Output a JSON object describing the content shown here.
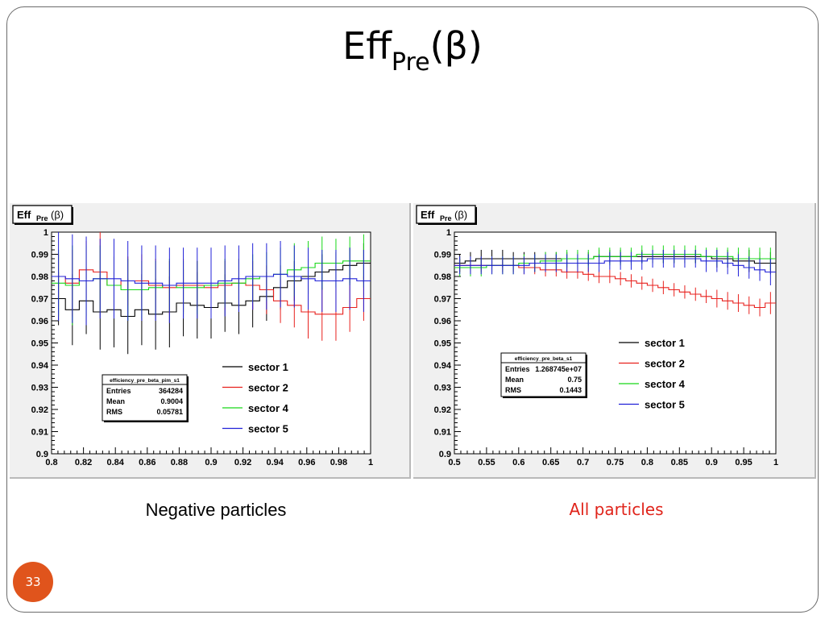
{
  "slide": {
    "title_main": "Eff",
    "title_sub": "Pre",
    "title_arg": "(β)",
    "caption_left": "Negative particles",
    "caption_right": "All particles",
    "page_number": "33"
  },
  "colors": {
    "sector_1": "#000000",
    "sector_2": "#e8201d",
    "sector_4": "#17d817",
    "sector_5": "#2020d8",
    "panel_bg": "#f0f0f0",
    "caption_right": "#e0241b",
    "badge": "#e0541c"
  },
  "chart_data": [
    {
      "type": "line",
      "title": "Eff_Pre(β)",
      "title_main": "Eff",
      "title_sub": "Pre",
      "title_arg": "(β)",
      "xlabel": "",
      "ylabel": "",
      "xlim": [
        0.8,
        1.0
      ],
      "ylim": [
        0.9,
        1.0
      ],
      "x_ticks": [
        "0.8",
        "0.82",
        "0.84",
        "0.86",
        "0.88",
        "0.9",
        "0.92",
        "0.94",
        "0.96",
        "0.98",
        "1"
      ],
      "y_ticks": [
        "0.9",
        "0.91",
        "0.92",
        "0.93",
        "0.94",
        "0.95",
        "0.96",
        "0.97",
        "0.98",
        "0.99",
        "1"
      ],
      "legend": "right",
      "stats": {
        "name": "efficiency_pre_beta_pim_s1",
        "rows": [
          [
            "Entries",
            "364284"
          ],
          [
            "Mean",
            "0.9004"
          ],
          [
            "RMS",
            "0.05781"
          ]
        ]
      },
      "series": [
        {
          "name": "sector 1",
          "values": [
            0.97,
            0.965,
            0.969,
            0.964,
            0.965,
            0.962,
            0.965,
            0.963,
            0.964,
            0.968,
            0.967,
            0.966,
            0.968,
            0.967,
            0.969,
            0.971,
            0.975,
            0.978,
            0.98,
            0.982,
            0.983,
            0.985,
            0.986
          ],
          "errors": [
            0.012,
            0.016,
            0.015,
            0.017,
            0.017,
            0.017,
            0.016,
            0.016,
            0.016,
            0.015,
            0.015,
            0.014,
            0.013,
            0.013,
            0.012,
            0.011,
            0.01,
            0.009,
            0.008,
            0.008,
            0.008,
            0.008,
            0.009
          ]
        },
        {
          "name": "sector 2",
          "values": [
            0.98,
            0.977,
            0.983,
            0.982,
            0.976,
            0.978,
            0.978,
            0.976,
            0.975,
            0.976,
            0.976,
            0.975,
            0.976,
            0.977,
            0.976,
            0.974,
            0.969,
            0.967,
            0.964,
            0.963,
            0.963,
            0.966,
            0.97
          ],
          "errors": [
            0.01,
            0.015,
            0.013,
            0.018,
            0.013,
            0.011,
            0.012,
            0.012,
            0.012,
            0.012,
            0.011,
            0.011,
            0.011,
            0.011,
            0.011,
            0.011,
            0.01,
            0.01,
            0.012,
            0.012,
            0.012,
            0.011,
            0.01
          ]
        },
        {
          "name": "sector 4",
          "values": [
            0.977,
            0.976,
            0.978,
            0.979,
            0.976,
            0.974,
            0.974,
            0.975,
            0.976,
            0.975,
            0.975,
            0.976,
            0.977,
            0.977,
            0.979,
            0.98,
            0.981,
            0.983,
            0.984,
            0.986,
            0.986,
            0.987,
            0.987
          ],
          "errors": [
            0.015,
            0.018,
            0.016,
            0.015,
            0.013,
            0.014,
            0.013,
            0.012,
            0.012,
            0.012,
            0.012,
            0.011,
            0.011,
            0.011,
            0.011,
            0.011,
            0.012,
            0.012,
            0.012,
            0.012,
            0.011,
            0.011,
            0.012
          ]
        },
        {
          "name": "sector 5",
          "values": [
            0.98,
            0.979,
            0.978,
            0.979,
            0.979,
            0.978,
            0.977,
            0.977,
            0.976,
            0.977,
            0.977,
            0.977,
            0.978,
            0.979,
            0.98,
            0.98,
            0.981,
            0.98,
            0.979,
            0.978,
            0.978,
            0.979,
            0.978
          ],
          "errors": [
            0.02,
            0.02,
            0.02,
            0.018,
            0.018,
            0.018,
            0.017,
            0.017,
            0.017,
            0.016,
            0.016,
            0.016,
            0.016,
            0.015,
            0.015,
            0.015,
            0.015,
            0.014,
            0.014,
            0.014,
            0.014,
            0.014,
            0.014
          ]
        }
      ]
    },
    {
      "type": "line",
      "title": "Eff_Pre(β)",
      "title_main": "Eff",
      "title_sub": "Pre",
      "title_arg": "(β)",
      "xlabel": "",
      "ylabel": "",
      "xlim": [
        0.5,
        1.0
      ],
      "ylim": [
        0.9,
        1.0
      ],
      "x_ticks": [
        "0.5",
        "0.55",
        "0.6",
        "0.65",
        "0.7",
        "0.75",
        "0.8",
        "0.85",
        "0.9",
        "0.95",
        "1"
      ],
      "y_ticks": [
        "0.9",
        "0.91",
        "0.92",
        "0.93",
        "0.94",
        "0.95",
        "0.96",
        "0.97",
        "0.98",
        "0.99",
        "1"
      ],
      "legend": "right",
      "stats": {
        "name": "efficiency_pre_beta_s1",
        "rows": [
          [
            "Entries",
            "1.268745e+07"
          ],
          [
            "Mean",
            "0.75"
          ],
          [
            "RMS",
            "0.1443"
          ]
        ]
      },
      "series": [
        {
          "name": "sector 1",
          "values": [
            0.986,
            0.987,
            0.988,
            0.988,
            0.988,
            0.988,
            0.988,
            0.988,
            0.988,
            0.988,
            0.988,
            0.988,
            0.988,
            0.989,
            0.989,
            0.989,
            0.989,
            0.989,
            0.989,
            0.989,
            0.989,
            0.989,
            0.989,
            0.989,
            0.988,
            0.988,
            0.987,
            0.987,
            0.986,
            0.986
          ],
          "errors": [
            0.004,
            0.004,
            0.004,
            0.004,
            0.004,
            0.003,
            0.003,
            0.003,
            0.003,
            0.003,
            0.003,
            0.003,
            0.003,
            0.003,
            0.003,
            0.003,
            0.003,
            0.003,
            0.003,
            0.003,
            0.003,
            0.003,
            0.003,
            0.003,
            0.004,
            0.004,
            0.004,
            0.005,
            0.005,
            0.005
          ]
        },
        {
          "name": "sector 2",
          "values": [
            0.985,
            0.985,
            0.985,
            0.985,
            0.985,
            0.985,
            0.984,
            0.984,
            0.983,
            0.983,
            0.982,
            0.982,
            0.981,
            0.98,
            0.98,
            0.979,
            0.978,
            0.977,
            0.976,
            0.975,
            0.974,
            0.973,
            0.972,
            0.971,
            0.97,
            0.969,
            0.968,
            0.967,
            0.966,
            0.968
          ],
          "errors": [
            0.003,
            0.003,
            0.003,
            0.003,
            0.003,
            0.003,
            0.003,
            0.003,
            0.003,
            0.003,
            0.003,
            0.003,
            0.003,
            0.003,
            0.003,
            0.003,
            0.003,
            0.003,
            0.003,
            0.003,
            0.003,
            0.003,
            0.003,
            0.003,
            0.004,
            0.004,
            0.004,
            0.004,
            0.004,
            0.005
          ]
        },
        {
          "name": "sector 4",
          "values": [
            0.984,
            0.984,
            0.984,
            0.985,
            0.985,
            0.985,
            0.986,
            0.986,
            0.987,
            0.987,
            0.988,
            0.988,
            0.988,
            0.989,
            0.989,
            0.989,
            0.989,
            0.99,
            0.99,
            0.99,
            0.99,
            0.99,
            0.99,
            0.989,
            0.989,
            0.989,
            0.988,
            0.988,
            0.988,
            0.988
          ],
          "errors": [
            0.004,
            0.004,
            0.004,
            0.004,
            0.004,
            0.004,
            0.004,
            0.004,
            0.004,
            0.004,
            0.004,
            0.004,
            0.004,
            0.004,
            0.004,
            0.004,
            0.004,
            0.004,
            0.004,
            0.004,
            0.004,
            0.004,
            0.004,
            0.004,
            0.004,
            0.004,
            0.005,
            0.005,
            0.005,
            0.005
          ]
        },
        {
          "name": "sector 5",
          "values": [
            0.985,
            0.985,
            0.985,
            0.985,
            0.985,
            0.985,
            0.985,
            0.986,
            0.986,
            0.986,
            0.986,
            0.986,
            0.986,
            0.986,
            0.987,
            0.987,
            0.987,
            0.987,
            0.988,
            0.988,
            0.988,
            0.988,
            0.988,
            0.987,
            0.987,
            0.986,
            0.985,
            0.984,
            0.983,
            0.982
          ],
          "errors": [
            0.004,
            0.004,
            0.004,
            0.004,
            0.004,
            0.004,
            0.004,
            0.004,
            0.004,
            0.004,
            0.004,
            0.004,
            0.004,
            0.004,
            0.004,
            0.004,
            0.004,
            0.004,
            0.004,
            0.004,
            0.004,
            0.004,
            0.004,
            0.005,
            0.005,
            0.005,
            0.005,
            0.005,
            0.005,
            0.006
          ]
        }
      ]
    }
  ]
}
